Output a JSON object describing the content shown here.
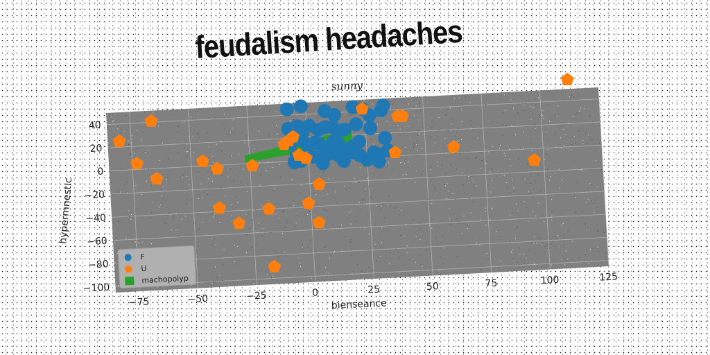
{
  "chart_data": {
    "type": "scatter",
    "title": "feudalism headaches",
    "subtitle": "sunny",
    "xlabel": "bienseance",
    "ylabel": "hypermnestic",
    "xlim": [
      -85,
      125
    ],
    "ylim": [
      -105,
      50
    ],
    "x_ticks": [
      "−75",
      "−50",
      "−25",
      "0",
      "25",
      "50",
      "75",
      "100",
      "125"
    ],
    "y_ticks": [
      "−100",
      "−80",
      "−60",
      "−40",
      "−20",
      "0",
      "20",
      "40"
    ],
    "x_tick_values": [
      -75,
      -50,
      -25,
      0,
      25,
      50,
      75,
      100,
      125
    ],
    "y_tick_values": [
      -100,
      -80,
      -60,
      -40,
      -20,
      0,
      20,
      40
    ],
    "grid": true,
    "legend_position": "bottom-left",
    "plot_background": "#808080",
    "series": [
      {
        "name": "F",
        "marker": "circle",
        "color": "#1f77b4",
        "points": [
          [
            -8,
            45
          ],
          [
            -2,
            47
          ],
          [
            8,
            42
          ],
          [
            12,
            38
          ],
          [
            20,
            44
          ],
          [
            24,
            42
          ],
          [
            27,
            36
          ],
          [
            32,
            40
          ],
          [
            33,
            44
          ],
          [
            -8,
            28
          ],
          [
            -4,
            30
          ],
          [
            -2,
            24
          ],
          [
            1,
            30
          ],
          [
            5,
            26
          ],
          [
            8,
            28
          ],
          [
            11,
            28
          ],
          [
            13,
            24
          ],
          [
            16,
            25
          ],
          [
            21,
            29
          ],
          [
            27,
            25
          ],
          [
            -7,
            16
          ],
          [
            -3,
            18
          ],
          [
            0,
            14
          ],
          [
            3,
            15
          ],
          [
            5,
            14
          ],
          [
            9,
            10
          ],
          [
            11,
            15
          ],
          [
            13,
            13
          ],
          [
            16,
            8
          ],
          [
            19,
            10
          ],
          [
            22,
            14
          ],
          [
            33,
            16
          ],
          [
            -5,
            5
          ],
          [
            -2,
            3
          ],
          [
            2,
            3
          ],
          [
            6,
            4
          ],
          [
            9,
            5
          ],
          [
            13,
            3
          ],
          [
            19,
            5
          ],
          [
            22,
            2
          ],
          [
            28,
            4
          ],
          [
            30,
            2
          ],
          [
            34,
            5
          ],
          [
            -6,
            -1
          ],
          [
            -3,
            0
          ],
          [
            6,
            -3
          ],
          [
            15,
            -2
          ],
          [
            25,
            -2
          ],
          [
            30,
            -4
          ]
        ]
      },
      {
        "name": "U",
        "marker": "pentagon",
        "color": "#ff7f0e",
        "points": [
          [
            -80,
            25
          ],
          [
            -73,
            5
          ],
          [
            -66,
            41
          ],
          [
            -65,
            -9
          ],
          [
            -45,
            4
          ],
          [
            -39,
            -3
          ],
          [
            -39,
            -37
          ],
          [
            -31,
            -51
          ],
          [
            -24,
            -2
          ],
          [
            -18,
            -40
          ],
          [
            -17,
            -90
          ],
          [
            -10,
            15
          ],
          [
            -8,
            18
          ],
          [
            -6,
            21
          ],
          [
            -4,
            5
          ],
          [
            -1,
            2
          ],
          [
            -1,
            -37
          ],
          [
            3,
            -54
          ],
          [
            4,
            -21
          ],
          [
            24,
            42
          ],
          [
            37,
            3
          ],
          [
            39,
            34
          ],
          [
            41,
            34
          ],
          [
            62,
            5
          ],
          [
            96,
            -10
          ],
          [
            112,
            58
          ]
        ]
      },
      {
        "name": "machopolyp",
        "marker": "square",
        "color": "#2ca02c",
        "band": {
          "x0": -27,
          "x1": 19,
          "y0_low": 1,
          "y0_high": 7,
          "y1_low": 13,
          "y1_high": 25
        }
      }
    ]
  },
  "colors": {
    "grid": "#c8c8c8",
    "legend_bg": "#b0b0b0",
    "text": "#222222"
  }
}
